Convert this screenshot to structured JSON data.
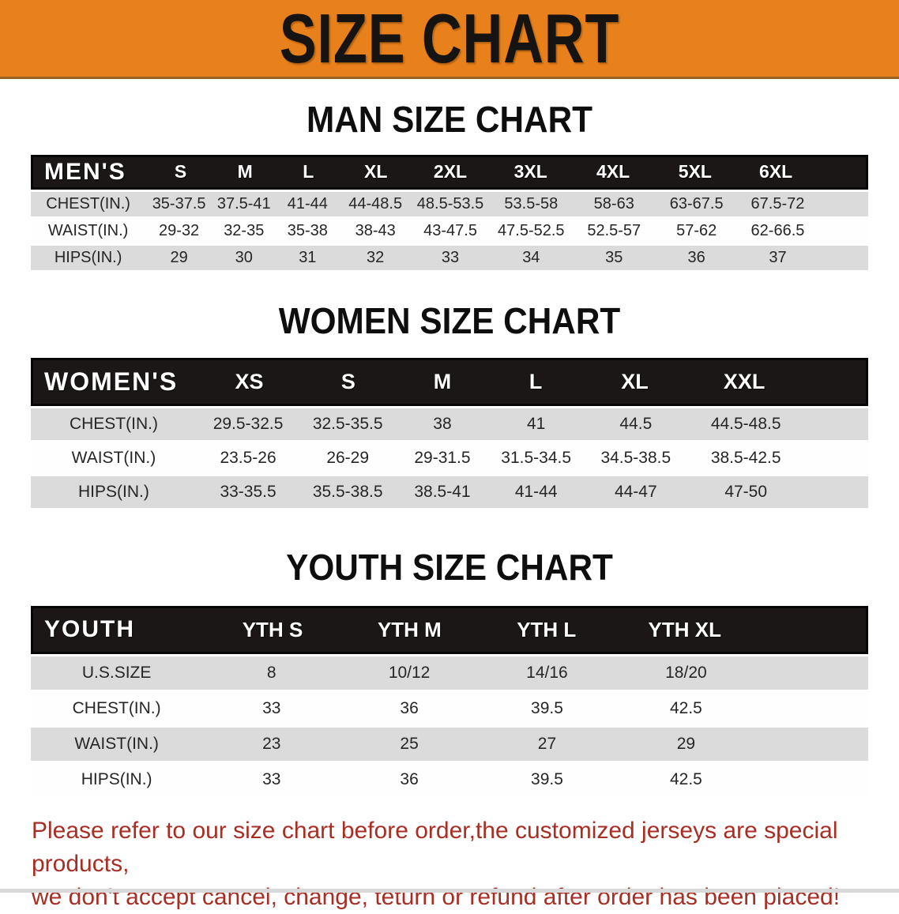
{
  "banner": {
    "title": "SIZE CHART"
  },
  "men": {
    "heading": "MAN SIZE CHART",
    "header": [
      "MEN'S",
      "S",
      "M",
      "L",
      "XL",
      "2XL",
      "3XL",
      "4XL",
      "5XL",
      "6XL"
    ],
    "rows": [
      [
        "CHEST(IN.)",
        "35-37.5",
        "37.5-41",
        "41-44",
        "44-48.5",
        "48.5-53.5",
        "53.5-58",
        "58-63",
        "63-67.5",
        "67.5-72"
      ],
      [
        "WAIST(IN.)",
        "29-32",
        "32-35",
        "35-38",
        "38-43",
        "43-47.5",
        "47.5-52.5",
        "52.5-57",
        "57-62",
        "62-66.5"
      ],
      [
        "HIPS(IN.)",
        "29",
        "30",
        "31",
        "32",
        "33",
        "34",
        "35",
        "36",
        "37"
      ]
    ]
  },
  "women": {
    "heading": "WOMEN SIZE CHART",
    "header": [
      "WOMEN'S",
      "XS",
      "S",
      "M",
      "L",
      "XL",
      "XXL"
    ],
    "rows": [
      [
        "CHEST(IN.)",
        "29.5-32.5",
        "32.5-35.5",
        "38",
        "41",
        "44.5",
        "44.5-48.5"
      ],
      [
        "WAIST(IN.)",
        "23.5-26",
        "26-29",
        "29-31.5",
        "31.5-34.5",
        "34.5-38.5",
        "38.5-42.5"
      ],
      [
        "HIPS(IN.)",
        "33-35.5",
        "35.5-38.5",
        "38.5-41",
        "41-44",
        "44-47",
        "47-50"
      ]
    ]
  },
  "youth": {
    "heading": "YOUTH SIZE CHART",
    "header": [
      "YOUTH",
      "YTH S",
      "YTH M",
      "YTH L",
      "YTH XL"
    ],
    "rows": [
      [
        "U.S.SIZE",
        "8",
        "10/12",
        "14/16",
        "18/20"
      ],
      [
        "CHEST(IN.)",
        "33",
        "36",
        "39.5",
        "42.5"
      ],
      [
        "WAIST(IN.)",
        "23",
        "25",
        "27",
        "29"
      ],
      [
        "HIPS(IN.)",
        "33",
        "36",
        "39.5",
        "42.5"
      ]
    ]
  },
  "disclaimer": {
    "line1": "Please refer to our size chart before order,the customized jerseys are special products,",
    "line2": "we don't accept cancel, change, teturn or refund after order has been placed!"
  },
  "colors": {
    "banner_bg": "#E8811B",
    "header_row_bg": "#1B1716",
    "band_gray": "#DBDBDB",
    "disclaimer_red": "#A82E24"
  }
}
